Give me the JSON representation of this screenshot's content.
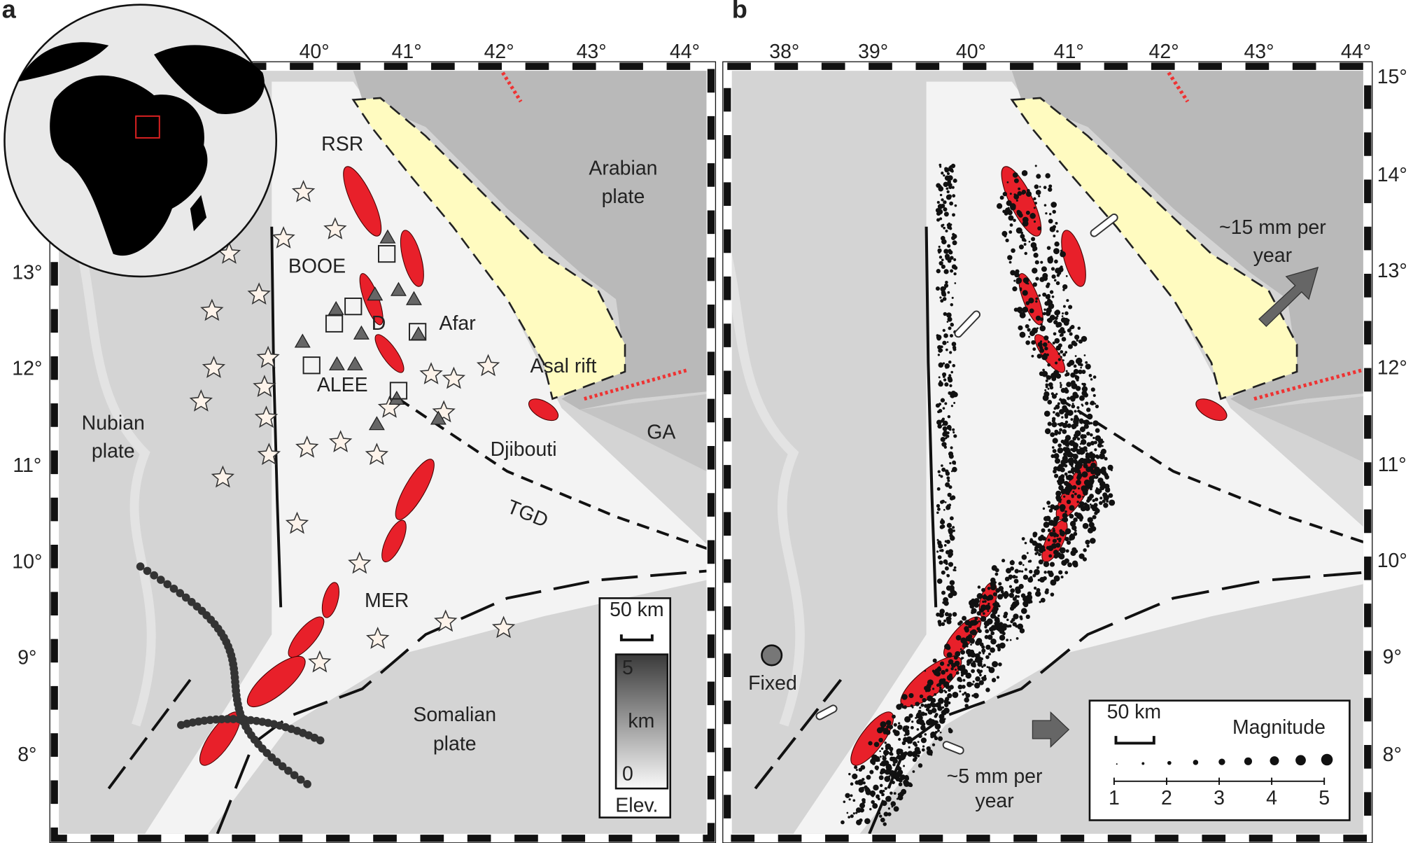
{
  "panels": [
    {
      "label": "a",
      "longitudes": [
        "40°",
        "41°",
        "42°",
        "43°",
        "44°"
      ],
      "latitudes": [
        "13°",
        "12°",
        "11°",
        "10°",
        "9°",
        "8°"
      ],
      "places": [
        "RSR",
        "BOOE",
        "D",
        "Afar",
        "ALEE",
        "Arabian",
        "plate",
        "Asal rift",
        "GA",
        "Nubian",
        "plate",
        "Djibouti",
        "TGD",
        "MER",
        "Somalian",
        "plate"
      ],
      "legend": {
        "scale": "50 km",
        "elev_max": "5",
        "elev_unit": "km",
        "elev_min": "0",
        "elev_title": "Elev."
      }
    },
    {
      "label": "b",
      "longitudes": [
        "38°",
        "39°",
        "40°",
        "41°",
        "42°",
        "43°",
        "44°"
      ],
      "latitudes": [
        "15°",
        "14°",
        "13°",
        "12°",
        "11°",
        "10°",
        "9°",
        "8°"
      ],
      "places": [
        "~15 mm per",
        "year",
        "Fixed",
        "~5 mm per",
        "year"
      ],
      "legend": {
        "scale": "50 km",
        "title": "Magnitude",
        "magnitudes": [
          "1",
          "2",
          "3",
          "4",
          "5"
        ]
      }
    }
  ]
}
